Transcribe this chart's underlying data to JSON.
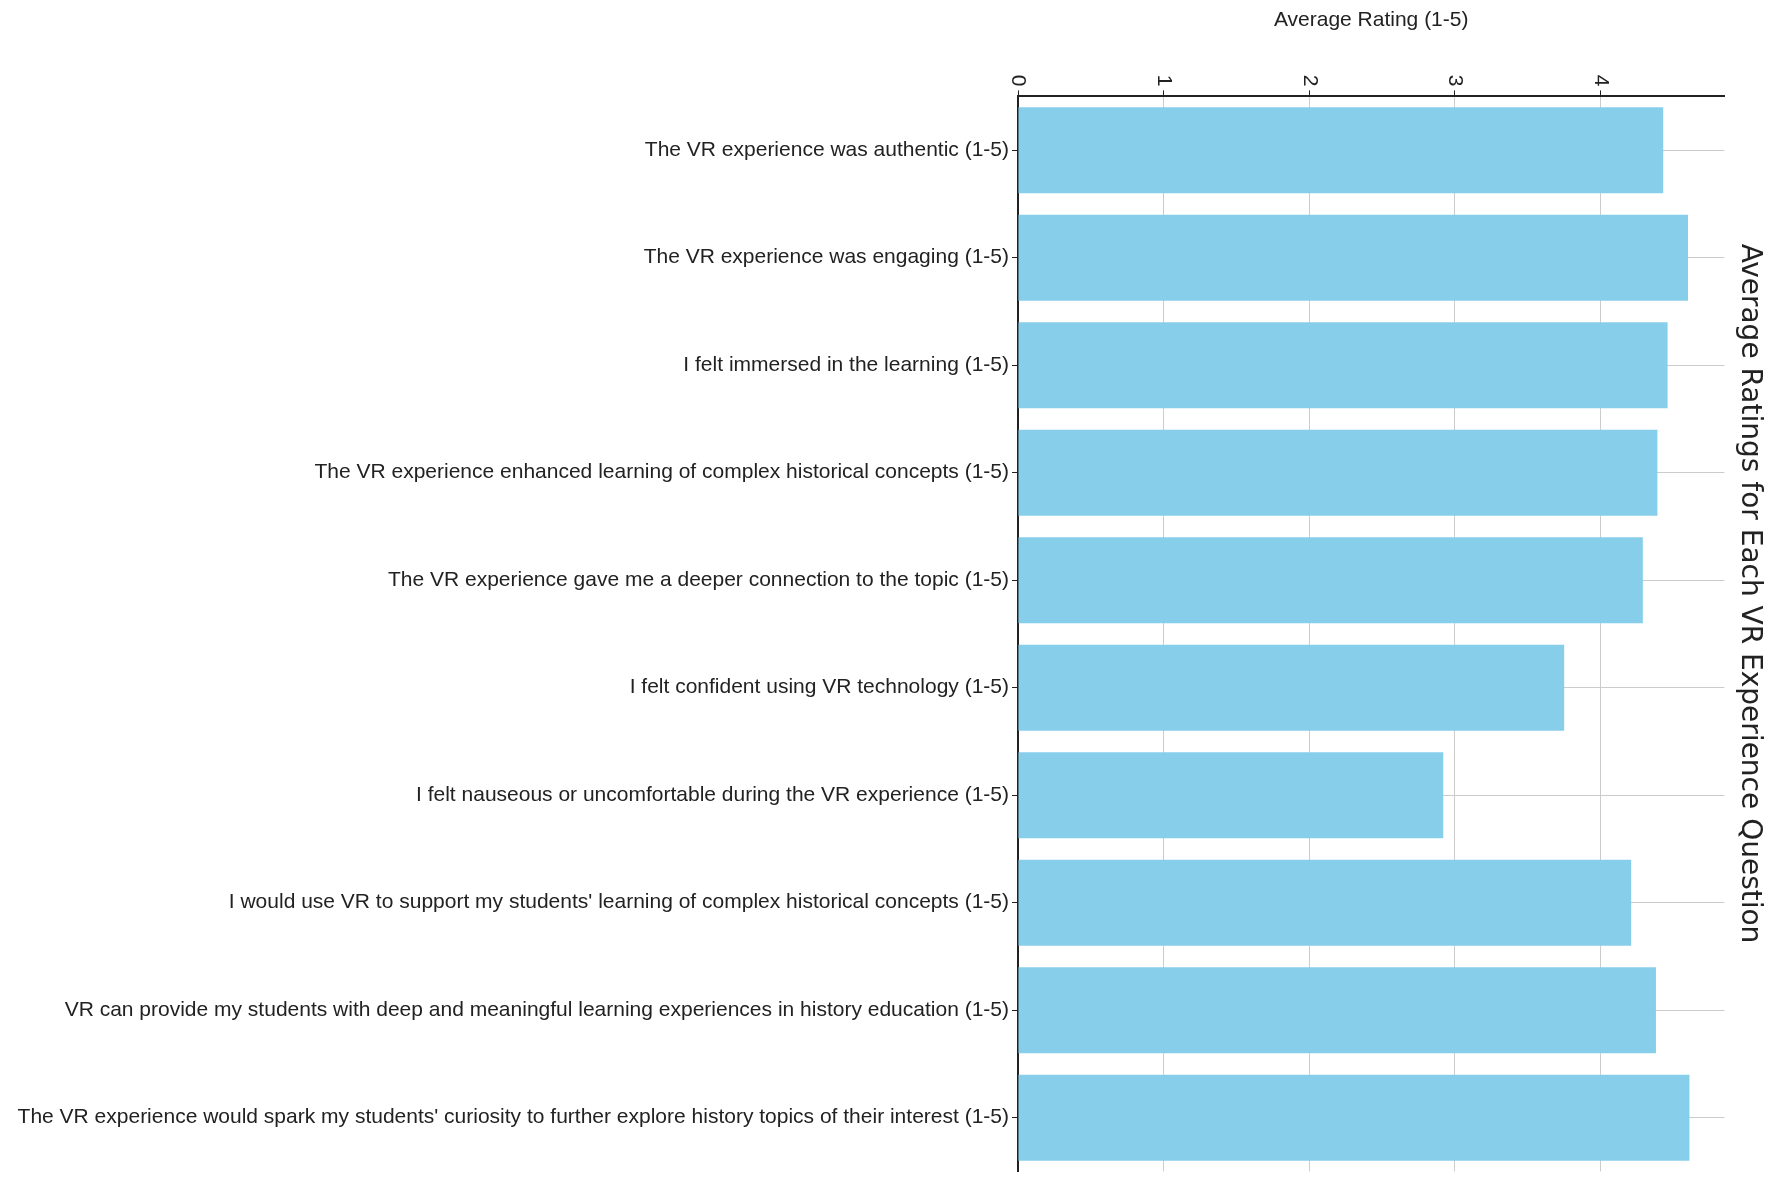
{
  "chart_data": {
    "type": "bar",
    "orientation": "horizontal",
    "title": "Average Ratings for Each VR Experience Question",
    "xlabel": "Average Rating (1-5)",
    "categories": [
      "The VR experience was authentic (1-5)",
      "The VR experience was engaging (1-5)",
      "I felt immersed in the learning (1-5)",
      "The VR experience enhanced learning of complex historical concepts (1-5)",
      "The VR experience gave me a deeper connection to the topic (1-5)",
      "I felt confident using VR technology (1-5)",
      "I felt nauseous or uncomfortable during the VR experience (1-5)",
      "I would use VR to support my students' learning of complex historical concepts (1-5)",
      "VR can provide my students with deep and meaningful learning experiences in history education (1-5)",
      "The VR experience would spark my students' curiosity to further explore history topics of their interest (1-5)"
    ],
    "values": [
      4.43,
      4.6,
      4.46,
      4.39,
      4.29,
      3.75,
      2.92,
      4.21,
      4.38,
      4.61
    ],
    "color": "#87ceeb",
    "xlim": [
      0,
      4.85
    ],
    "xticks": [
      0,
      1,
      2,
      3,
      4
    ],
    "grid": true
  }
}
